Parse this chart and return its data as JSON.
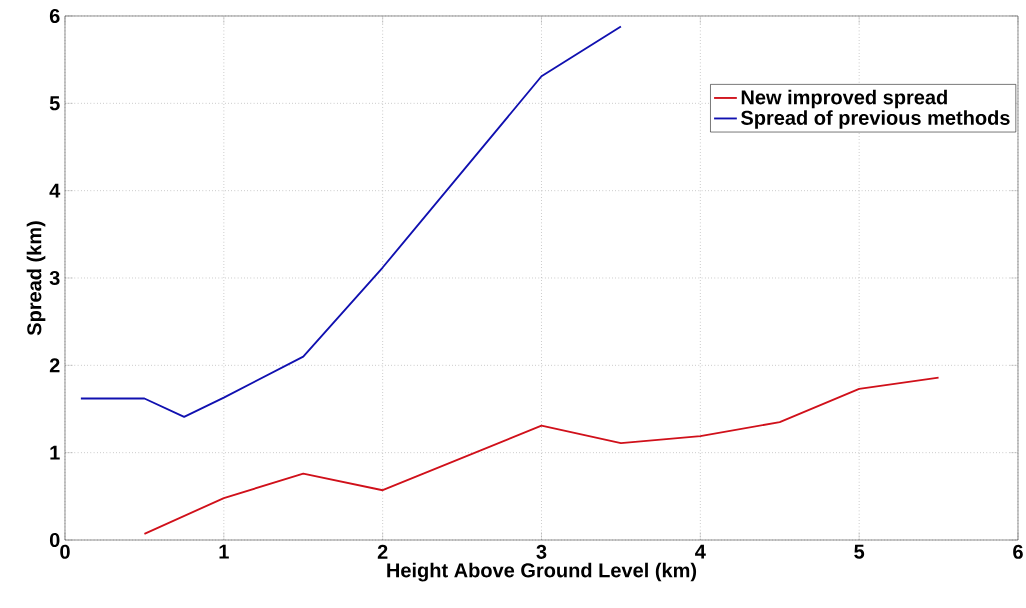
{
  "chart_data": {
    "type": "line",
    "xlabel": "Height Above Ground Level (km)",
    "ylabel": "Spread (km)",
    "xlim": [
      0,
      6
    ],
    "ylim": [
      0,
      6
    ],
    "xticks": [
      0,
      1,
      2,
      3,
      4,
      5,
      6
    ],
    "yticks": [
      0,
      1,
      2,
      3,
      4,
      5,
      6
    ],
    "grid": true,
    "legend": "top right",
    "line_style": "solid",
    "marker": "none",
    "series": [
      {
        "name": "New improved spread",
        "color": "#d0101a",
        "x": [
          0.5,
          1,
          1.5,
          2,
          3,
          3.5,
          4,
          4.5,
          5,
          5.5
        ],
        "values": [
          0.07,
          0.48,
          0.76,
          0.57,
          1.31,
          1.11,
          1.19,
          1.35,
          1.73,
          1.86
        ]
      },
      {
        "name": "Spread of previous methods",
        "color": "#1010b0",
        "x": [
          0.1,
          0.5,
          0.75,
          1,
          1.5,
          2,
          3,
          3.5
        ],
        "values": [
          1.62,
          1.62,
          1.41,
          1.63,
          2.1,
          3.12,
          5.31,
          5.88
        ]
      }
    ]
  }
}
